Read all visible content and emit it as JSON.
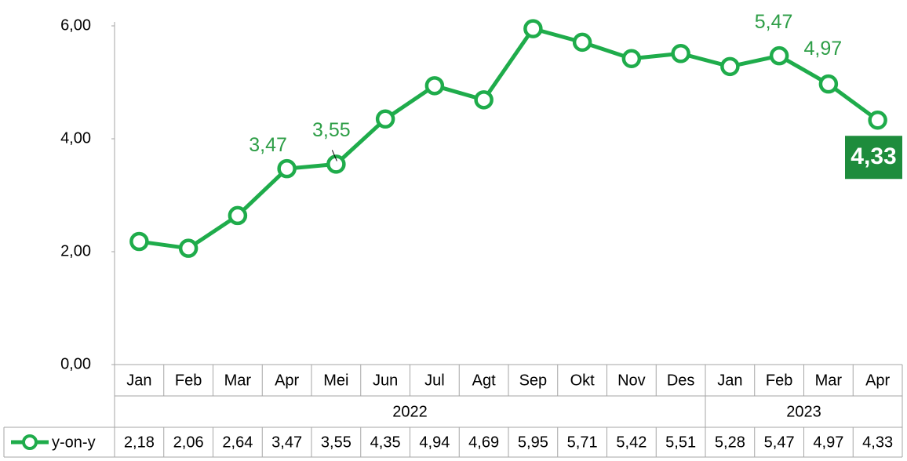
{
  "chart_data": {
    "type": "line",
    "categories": [
      "Jan",
      "Feb",
      "Mar",
      "Apr",
      "Mei",
      "Jun",
      "Jul",
      "Agt",
      "Sep",
      "Okt",
      "Nov",
      "Des",
      "Jan",
      "Feb",
      "Mar",
      "Apr"
    ],
    "year_groups": [
      {
        "label": "2022",
        "count": 12
      },
      {
        "label": "2023",
        "count": 4
      }
    ],
    "series": [
      {
        "name": "y-on-y",
        "color": "#1fac4b",
        "values": [
          2.18,
          2.06,
          2.64,
          3.47,
          3.55,
          4.35,
          4.94,
          4.69,
          5.95,
          5.71,
          5.42,
          5.51,
          5.28,
          5.47,
          4.97,
          4.33
        ],
        "value_labels": [
          "2,18",
          "2,06",
          "2,64",
          "3,47",
          "3,55",
          "4,35",
          "4,94",
          "4,69",
          "5,95",
          "5,71",
          "5,42",
          "5,51",
          "5,28",
          "5,47",
          "4,97",
          "4,33"
        ]
      }
    ],
    "ylim": [
      0,
      6
    ],
    "yticks": [
      {
        "value": 0,
        "label": "0,00"
      },
      {
        "value": 2,
        "label": "2,00"
      },
      {
        "value": 4,
        "label": "4,00"
      },
      {
        "value": 6,
        "label": "6,00"
      }
    ],
    "grid": false
  }
}
